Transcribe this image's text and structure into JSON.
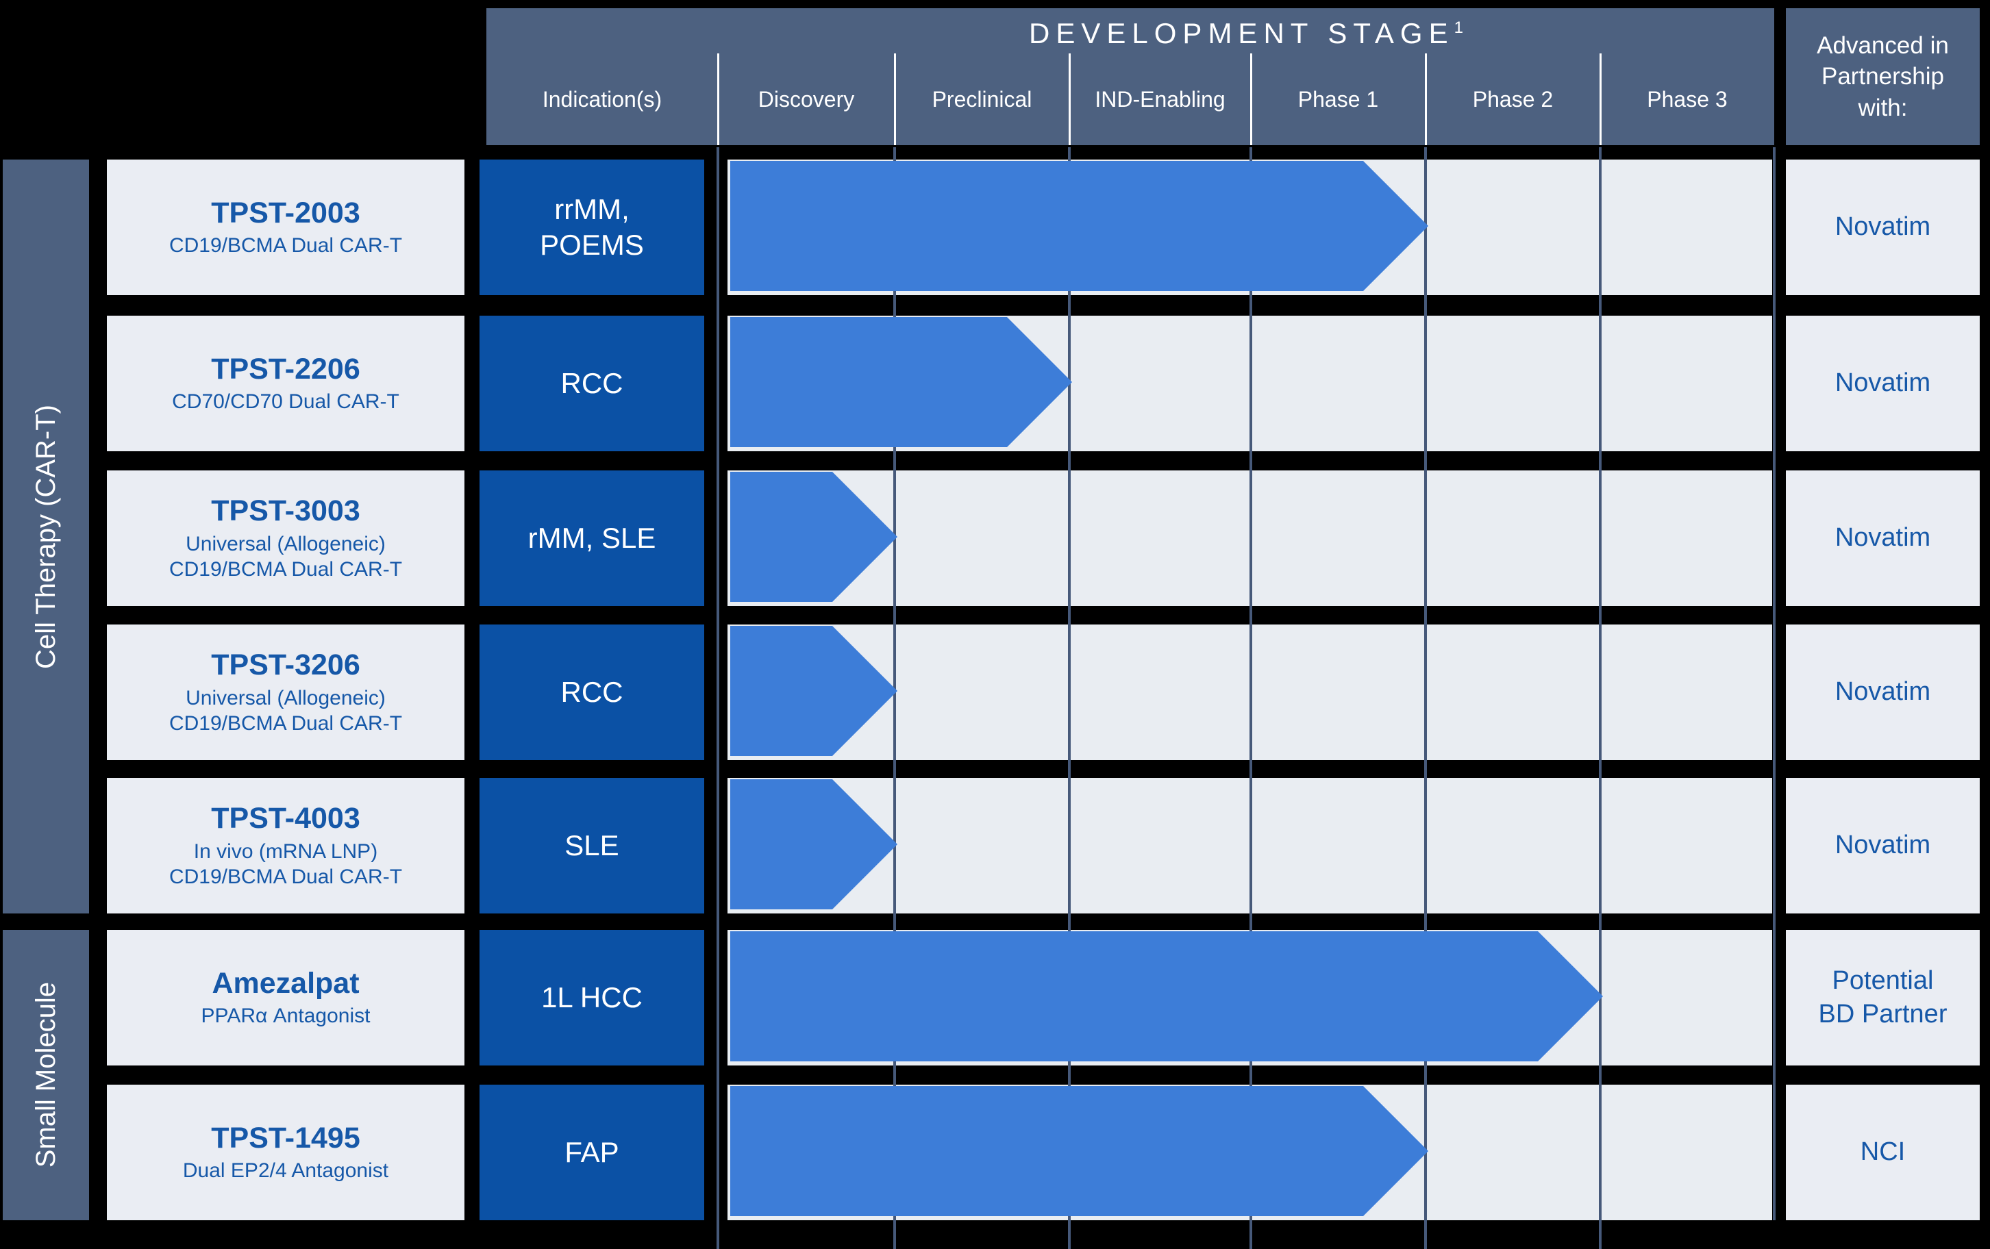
{
  "header": {
    "title": "DEVELOPMENT STAGE",
    "title_superscript": "1",
    "columns": [
      "Indication(s)",
      "Discovery",
      "Preclinical",
      "IND-Enabling",
      "Phase 1",
      "Phase 2",
      "Phase 3"
    ],
    "partnership_column": "Advanced in Partnership with:"
  },
  "sidebar": {
    "groups": [
      {
        "label": "Cell Therapy (CAR-T)",
        "row_span": 5
      },
      {
        "label": "Small Molecule",
        "row_span": 2
      }
    ]
  },
  "pipeline": {
    "rows": [
      {
        "group": "Cell Therapy (CAR-T)",
        "name": "TPST-2003",
        "subtitle": [
          "CD19/BCMA Dual CAR-T"
        ],
        "indication": [
          "rrMM,",
          "POEMS"
        ],
        "partner": [
          "Novatim"
        ],
        "stage_reached": "Phase 1",
        "stages_completed": 4
      },
      {
        "group": "Cell Therapy (CAR-T)",
        "name": "TPST-2206",
        "subtitle": [
          "CD70/CD70 Dual CAR-T"
        ],
        "indication": [
          "RCC"
        ],
        "partner": [
          "Novatim"
        ],
        "stage_reached": "Preclinical",
        "stages_completed": 2
      },
      {
        "group": "Cell Therapy (CAR-T)",
        "name": "TPST-3003",
        "subtitle": [
          "Universal (Allogeneic)",
          "CD19/BCMA Dual CAR-T"
        ],
        "indication": [
          "rMM, SLE"
        ],
        "partner": [
          "Novatim"
        ],
        "stage_reached": "Discovery",
        "stages_completed": 1
      },
      {
        "group": "Cell Therapy (CAR-T)",
        "name": "TPST-3206",
        "subtitle": [
          "Universal (Allogeneic)",
          "CD19/BCMA Dual CAR-T"
        ],
        "indication": [
          "RCC"
        ],
        "partner": [
          "Novatim"
        ],
        "stage_reached": "Discovery",
        "stages_completed": 1
      },
      {
        "group": "Cell Therapy (CAR-T)",
        "name": "TPST-4003",
        "subtitle": [
          "In vivo (mRNA LNP)",
          "CD19/BCMA Dual CAR-T"
        ],
        "indication": [
          "SLE"
        ],
        "partner": [
          "Novatim"
        ],
        "stage_reached": "Discovery",
        "stages_completed": 1
      },
      {
        "group": "Small Molecule",
        "name": "Amezalpat",
        "subtitle": [
          "PPARα Antagonist"
        ],
        "indication": [
          "1L HCC"
        ],
        "partner": [
          "Potential",
          "BD Partner"
        ],
        "stage_reached": "Phase 2",
        "stages_completed": 5
      },
      {
        "group": "Small Molecule",
        "name": "TPST-1495",
        "subtitle": [
          "Dual EP2/4 Antagonist"
        ],
        "indication": [
          "FAP"
        ],
        "partner": [
          "NCI"
        ],
        "stage_reached": "Phase 1",
        "stages_completed": 4
      }
    ]
  },
  "colors": {
    "background": "#000000",
    "header_slate": "#4d6180",
    "card_fill": "#eaedf3",
    "track_fill": "#e9edf2",
    "arrow_blue": "#3d7dd8",
    "indication_blue": "#0b51a5",
    "text_blue": "#1658a8",
    "grid_line": "#46597a",
    "header_divider": "#ffffff",
    "text_white": "#ffffff"
  },
  "chart_data": {
    "type": "bar",
    "orientation": "horizontal",
    "title": "DEVELOPMENT STAGE",
    "categories": [
      "TPST-2003 (rrMM, POEMS)",
      "TPST-2206 (RCC)",
      "TPST-3003 (rMM, SLE)",
      "TPST-3206 (RCC)",
      "TPST-4003 (SLE)",
      "Amezalpat (1L HCC)",
      "TPST-1495 (FAP)"
    ],
    "values": [
      4,
      2,
      1,
      1,
      1,
      5,
      4
    ],
    "series": [
      {
        "name": "Stages completed (arrow extent)",
        "values": [
          4,
          2,
          1,
          1,
          1,
          5,
          4
        ]
      }
    ],
    "value_axis_stages": [
      "Discovery",
      "Preclinical",
      "IND-Enabling",
      "Phase 1",
      "Phase 2",
      "Phase 3"
    ],
    "value_note": "value N means the progress arrow tip reaches the end of stage N",
    "xlim": [
      0,
      6
    ],
    "legend_position": "none",
    "grid": "vertical stage-boundary dividers"
  }
}
